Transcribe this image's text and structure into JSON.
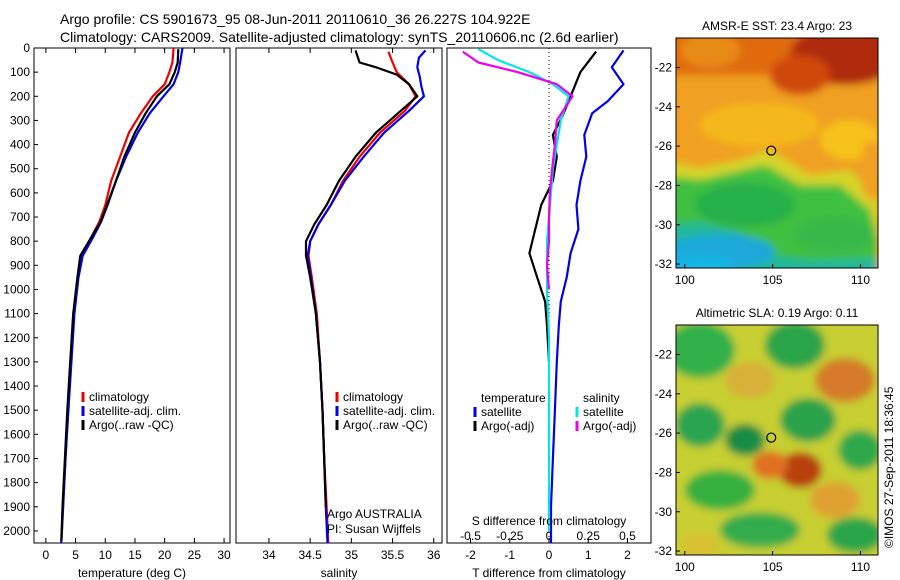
{
  "header": {
    "line1": "Argo profile: CS 5901673_95 08-Jun-2011 20110610_36 26.227S 104.922E",
    "line2": "Climatology: CARS2009. Satellite-adjusted climatology: synTS_20110606.nc (2.6d earlier)"
  },
  "colors": {
    "climatology": "#ee0000",
    "satellite": "#0000ee",
    "argo": "#000000",
    "salinity_satellite": "#00e5e5",
    "salinity_argo": "#ee00ee"
  },
  "chart_data": [
    {
      "id": "temperature",
      "type": "line",
      "xlabel": "temperature (deg C)",
      "ylabel": "",
      "xlim": [
        -2,
        31
      ],
      "ylim": [
        2050,
        0
      ],
      "xticks": [
        0,
        5,
        10,
        15,
        20,
        25,
        30
      ],
      "yticks": [
        0,
        100,
        200,
        300,
        400,
        500,
        600,
        700,
        800,
        900,
        1000,
        1100,
        1200,
        1300,
        1400,
        1500,
        1600,
        1700,
        1800,
        1900,
        2000
      ],
      "legend": [
        "climatology",
        "satellite-adj. clim.",
        "Argo(..raw -QC)"
      ],
      "series": [
        {
          "name": "climatology",
          "color": "#ee0000",
          "points": [
            [
              21.5,
              0
            ],
            [
              21.3,
              60
            ],
            [
              20.8,
              100
            ],
            [
              20,
              150
            ],
            [
              18,
              200
            ],
            [
              16,
              270
            ],
            [
              14,
              350
            ],
            [
              12.5,
              450
            ],
            [
              11,
              550
            ],
            [
              10,
              650
            ],
            [
              9,
              720
            ],
            [
              7.5,
              790
            ],
            [
              6,
              860
            ],
            [
              5.4,
              950
            ],
            [
              4.7,
              1100
            ],
            [
              4.2,
              1300
            ],
            [
              3.7,
              1500
            ],
            [
              3.3,
              1700
            ],
            [
              2.9,
              1900
            ],
            [
              2.6,
              2050
            ]
          ]
        },
        {
          "name": "satellite-adj. clim.",
          "color": "#0000ee",
          "points": [
            [
              23,
              0
            ],
            [
              22.6,
              60
            ],
            [
              22.3,
              100
            ],
            [
              21.5,
              150
            ],
            [
              19.8,
              200
            ],
            [
              17.5,
              270
            ],
            [
              15.5,
              350
            ],
            [
              13.5,
              450
            ],
            [
              11.8,
              550
            ],
            [
              10.4,
              650
            ],
            [
              9.3,
              720
            ],
            [
              7.8,
              790
            ],
            [
              6.2,
              860
            ],
            [
              5.5,
              950
            ],
            [
              4.8,
              1100
            ],
            [
              4.3,
              1300
            ],
            [
              3.8,
              1500
            ],
            [
              3.3,
              1700
            ],
            [
              2.9,
              1900
            ],
            [
              2.6,
              2050
            ]
          ]
        },
        {
          "name": "Argo(..raw -QC)",
          "color": "#000000",
          "points": [
            [
              22.3,
              5
            ],
            [
              22.2,
              60
            ],
            [
              21.7,
              100
            ],
            [
              20.8,
              150
            ],
            [
              18.7,
              200
            ],
            [
              16.8,
              270
            ],
            [
              15,
              350
            ],
            [
              13.2,
              450
            ],
            [
              11.8,
              550
            ],
            [
              10.3,
              650
            ],
            [
              9.2,
              720
            ],
            [
              7.5,
              790
            ],
            [
              5.8,
              860
            ],
            [
              5.3,
              950
            ],
            [
              4.6,
              1100
            ],
            [
              4.1,
              1300
            ],
            [
              3.6,
              1500
            ],
            [
              3.2,
              1700
            ],
            [
              2.8,
              1900
            ],
            [
              2.6,
              2040
            ]
          ]
        }
      ]
    },
    {
      "id": "salinity",
      "type": "line",
      "xlabel": "salinity",
      "ylabel": "",
      "xlim": [
        33.6,
        36.1
      ],
      "ylim": [
        2050,
        0
      ],
      "xticks": [
        34,
        34.5,
        35,
        35.5,
        36
      ],
      "legend": [
        "climatology",
        "satellite-adj. clim.",
        "Argo(..raw -QC)"
      ],
      "series": [
        {
          "name": "climatology",
          "color": "#ee0000",
          "points": [
            [
              35.45,
              15
            ],
            [
              35.5,
              60
            ],
            [
              35.55,
              100
            ],
            [
              35.7,
              150
            ],
            [
              35.78,
              200
            ],
            [
              35.65,
              260
            ],
            [
              35.35,
              350
            ],
            [
              35.1,
              450
            ],
            [
              34.9,
              550
            ],
            [
              34.75,
              650
            ],
            [
              34.6,
              730
            ],
            [
              34.5,
              800
            ],
            [
              34.48,
              860
            ],
            [
              34.52,
              950
            ],
            [
              34.58,
              1100
            ],
            [
              34.62,
              1300
            ],
            [
              34.65,
              1500
            ],
            [
              34.67,
              1700
            ],
            [
              34.7,
              1900
            ],
            [
              34.72,
              2050
            ]
          ]
        },
        {
          "name": "satellite-adj. clim.",
          "color": "#0000ee",
          "points": [
            [
              35.9,
              10
            ],
            [
              35.82,
              40
            ],
            [
              35.8,
              80
            ],
            [
              35.83,
              120
            ],
            [
              35.85,
              160
            ],
            [
              35.88,
              200
            ],
            [
              35.7,
              260
            ],
            [
              35.4,
              350
            ],
            [
              35.15,
              450
            ],
            [
              34.92,
              550
            ],
            [
              34.75,
              650
            ],
            [
              34.6,
              730
            ],
            [
              34.5,
              800
            ],
            [
              34.47,
              860
            ],
            [
              34.51,
              950
            ],
            [
              34.57,
              1100
            ],
            [
              34.62,
              1300
            ],
            [
              34.65,
              1500
            ],
            [
              34.67,
              1700
            ],
            [
              34.69,
              1900
            ],
            [
              34.71,
              2050
            ]
          ]
        },
        {
          "name": "Argo(..raw -QC)",
          "color": "#000000",
          "points": [
            [
              35.05,
              10
            ],
            [
              35.1,
              60
            ],
            [
              35.3,
              80
            ],
            [
              35.55,
              110
            ],
            [
              35.7,
              150
            ],
            [
              35.8,
              200
            ],
            [
              35.6,
              260
            ],
            [
              35.3,
              350
            ],
            [
              35.05,
              450
            ],
            [
              34.85,
              550
            ],
            [
              34.7,
              650
            ],
            [
              34.55,
              730
            ],
            [
              34.45,
              800
            ],
            [
              34.45,
              860
            ],
            [
              34.5,
              950
            ],
            [
              34.57,
              1100
            ],
            [
              34.62,
              1300
            ],
            [
              34.65,
              1500
            ],
            [
              34.67,
              1700
            ],
            [
              34.69,
              1900
            ]
          ]
        }
      ],
      "annotation": {
        "line1": "Argo AUSTRALIA",
        "line2": "PI: Susan Wijffels"
      }
    },
    {
      "id": "difference",
      "type": "line",
      "xlabel": "T difference from climatology",
      "title": "S difference from climatology",
      "xlim": [
        -2.6,
        2.6
      ],
      "ylim": [
        2050,
        0
      ],
      "xticks": [
        -2,
        -1,
        0,
        1,
        2
      ],
      "xticks_top": [
        "-0.5",
        "-0.25",
        "0",
        "0.25",
        "0.5"
      ],
      "legend_temperature": {
        "title": "temperature",
        "items": [
          "satellite",
          "Argo(-adj)"
        ]
      },
      "legend_salinity": {
        "title": "salinity",
        "items": [
          "satellite",
          "Argo(-adj)"
        ]
      },
      "series": [
        {
          "name": "temperature satellite",
          "color": "#0000ee",
          "points": [
            [
              1.9,
              10
            ],
            [
              1.6,
              80
            ],
            [
              1.9,
              150
            ],
            [
              1.5,
              220
            ],
            [
              1.1,
              270
            ],
            [
              0.9,
              360
            ],
            [
              0.95,
              450
            ],
            [
              0.8,
              550
            ],
            [
              0.7,
              650
            ],
            [
              0.75,
              750
            ],
            [
              0.55,
              850
            ],
            [
              0.45,
              950
            ],
            [
              0.3,
              1050
            ],
            [
              0.25,
              1150
            ],
            [
              0.2,
              1300
            ],
            [
              0.15,
              1500
            ],
            [
              0.1,
              1700
            ],
            [
              0.05,
              1900
            ],
            [
              0.05,
              2050
            ]
          ]
        },
        {
          "name": "temperature Argo(-adj)",
          "color": "#000000",
          "points": [
            [
              1.2,
              15
            ],
            [
              0.8,
              100
            ],
            [
              0.55,
              200
            ],
            [
              0.35,
              280
            ],
            [
              0.1,
              360
            ],
            [
              0.2,
              450
            ],
            [
              0.1,
              550
            ],
            [
              -0.2,
              650
            ],
            [
              -0.35,
              750
            ],
            [
              -0.5,
              850
            ],
            [
              -0.3,
              950
            ],
            [
              -0.1,
              1050
            ],
            [
              -0.05,
              1150
            ],
            [
              0,
              1300
            ]
          ]
        },
        {
          "name": "salinity satellite",
          "color": "#00e5e5",
          "points": [
            [
              -1.8,
              5
            ],
            [
              -1.3,
              50
            ],
            [
              -0.5,
              100
            ],
            [
              0.1,
              150
            ],
            [
              0.5,
              200
            ],
            [
              0.4,
              250
            ],
            [
              0.3,
              300
            ],
            [
              0.2,
              400
            ],
            [
              0.1,
              500
            ],
            [
              0.05,
              600
            ],
            [
              0,
              700
            ],
            [
              -0.05,
              800
            ],
            [
              -0.05,
              900
            ],
            [
              -0.05,
              1000
            ],
            [
              0,
              1200
            ],
            [
              0,
              1400
            ],
            [
              0,
              1600
            ],
            [
              0,
              1800
            ],
            [
              0,
              2000
            ]
          ]
        },
        {
          "name": "salinity Argo(-adj)",
          "color": "#ee00ee",
          "points": [
            [
              -2.2,
              15
            ],
            [
              -1.8,
              60
            ],
            [
              -0.8,
              100
            ],
            [
              0.2,
              150
            ],
            [
              0.6,
              200
            ],
            [
              0.4,
              250
            ],
            [
              0.2,
              300
            ],
            [
              0.15,
              400
            ],
            [
              0.08,
              500
            ],
            [
              0.02,
              600
            ],
            [
              0,
              700
            ],
            [
              0,
              800
            ],
            [
              -0.05,
              900
            ],
            [
              0,
              1000
            ]
          ]
        }
      ]
    }
  ],
  "maps": [
    {
      "id": "sst",
      "title": "AMSR-E SST: 23.4 Argo: 23",
      "lon_range": [
        99.5,
        111
      ],
      "lat_range": [
        -32.2,
        -20.5
      ],
      "xticks": [
        "100",
        "105",
        "110"
      ],
      "yticks": [
        "-22",
        "-24",
        "-26",
        "-28",
        "-30",
        "-32"
      ],
      "marker": {
        "lon": 104.922,
        "lat": -26.227
      }
    },
    {
      "id": "sla",
      "title": "Altimetric SLA: 0.19 Argo: 0.11",
      "lon_range": [
        99.5,
        111
      ],
      "lat_range": [
        -32.2,
        -20.5
      ],
      "xticks": [
        "100",
        "105",
        "110"
      ],
      "yticks": [
        "-22",
        "-24",
        "-26",
        "-28",
        "-30",
        "-32"
      ],
      "marker": {
        "lon": 104.922,
        "lat": -26.227
      }
    }
  ],
  "stamp": "©IMOS 27-Sep-2011 18:36:45"
}
